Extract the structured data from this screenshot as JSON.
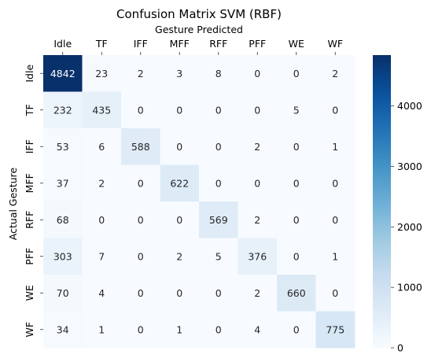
{
  "chart_data": {
    "type": "heatmap",
    "title": "Confusion Matrix SVM (RBF)",
    "xlabel": "Gesture Predicted",
    "ylabel": "Actual Gesture",
    "x_categories": [
      "Idle",
      "TF",
      "IFF",
      "MFF",
      "RFF",
      "PFF",
      "WE",
      "WF"
    ],
    "y_categories": [
      "Idle",
      "TF",
      "IFF",
      "MFF",
      "RFF",
      "PFF",
      "WE",
      "WF"
    ],
    "values": [
      [
        4842,
        23,
        2,
        3,
        8,
        0,
        0,
        2
      ],
      [
        232,
        435,
        0,
        0,
        0,
        0,
        5,
        0
      ],
      [
        53,
        6,
        588,
        0,
        0,
        2,
        0,
        1
      ],
      [
        37,
        2,
        0,
        622,
        0,
        0,
        0,
        0
      ],
      [
        68,
        0,
        0,
        0,
        569,
        2,
        0,
        0
      ],
      [
        303,
        7,
        0,
        2,
        5,
        376,
        0,
        1
      ],
      [
        70,
        4,
        0,
        0,
        0,
        2,
        660,
        0
      ],
      [
        34,
        1,
        0,
        1,
        0,
        4,
        0,
        775
      ]
    ],
    "x_axis_position": "top",
    "colormap": "Blues",
    "colorbar": {
      "range": [
        0,
        4842
      ],
      "ticks": [
        0,
        1000,
        2000,
        3000,
        4000
      ],
      "tick_labels": [
        "0",
        "1000",
        "2000",
        "3000",
        "4000"
      ]
    },
    "grid": false
  }
}
